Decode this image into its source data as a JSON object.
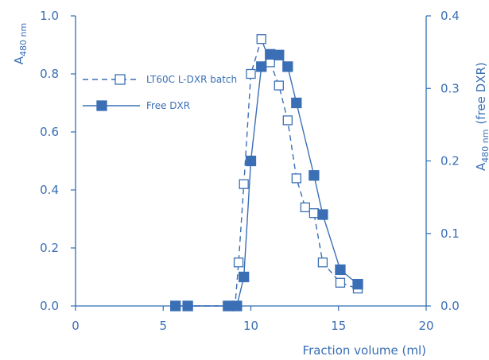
{
  "chart_data": {
    "type": "line",
    "xlabel": "Fraction volume (ml)",
    "ylabel_left": "A",
    "ylabel_left_sub": "480 nm",
    "ylabel_right": "A",
    "ylabel_right_sub": "480 nm",
    "ylabel_right_suffix": "(free DXR)",
    "xlim": [
      0,
      20
    ],
    "ylim_left": [
      0,
      1.0
    ],
    "ylim_right": [
      0,
      0.4
    ],
    "x_ticks": [
      "0",
      "5",
      "10",
      "15",
      "20"
    ],
    "y_left_ticks": [
      "0.0",
      "0.2",
      "0.4",
      "0.6",
      "0.8",
      "1.0"
    ],
    "y_right_ticks": [
      "0.0",
      "0.1",
      "0.2",
      "0.3",
      "0.4"
    ],
    "grid": false,
    "legend_position": "top-left",
    "series": [
      {
        "name": "LT60C L-DXR batch",
        "axis": "left",
        "line_style": "dashed",
        "marker": "open-square",
        "x": [
          5.7,
          6.4,
          8.7,
          9.1,
          9.3,
          9.6,
          10.0,
          10.6,
          11.1,
          11.6,
          12.1,
          12.6,
          13.1,
          13.6,
          14.1,
          15.1,
          16.1
        ],
        "y": [
          0.0,
          0.0,
          0.0,
          0.0,
          0.15,
          0.42,
          0.8,
          0.92,
          0.84,
          0.76,
          0.64,
          0.44,
          0.34,
          0.32,
          0.15,
          0.08,
          0.06
        ]
      },
      {
        "name": "Free DXR",
        "axis": "right",
        "line_style": "solid",
        "marker": "filled-square",
        "x": [
          5.7,
          6.4,
          8.7,
          9.2,
          9.6,
          10.0,
          10.6,
          11.1,
          11.6,
          12.1,
          12.6,
          13.6,
          14.1,
          15.1,
          16.1
        ],
        "y": [
          0.0,
          0.0,
          0.0,
          0.0,
          0.04,
          0.2,
          0.33,
          0.347,
          0.346,
          0.33,
          0.28,
          0.18,
          0.126,
          0.05,
          0.03
        ]
      }
    ],
    "colors": {
      "accent": "#3a6fb5",
      "axis": "#2f6db3"
    }
  }
}
